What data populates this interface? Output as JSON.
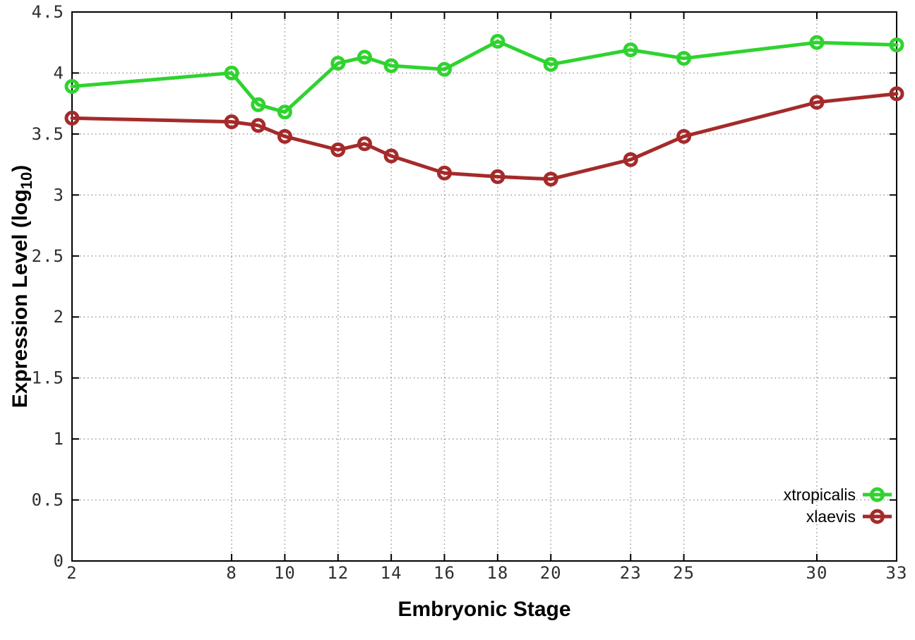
{
  "figure": {
    "background": "#ffffff",
    "border_color": "#000000",
    "grid_color": "#999999",
    "tick_label_color": "#2f2f2f"
  },
  "chart_data": {
    "type": "line",
    "title": "",
    "xlabel": "Embryonic Stage",
    "ylabel_prefix": "Expression Level (log",
    "ylabel_sub": "10",
    "ylabel_suffix": ")",
    "x": [
      2,
      8,
      9,
      10,
      12,
      13,
      14,
      16,
      18,
      20,
      23,
      25,
      30,
      33
    ],
    "series": [
      {
        "name": "xtropicalis",
        "color": "#2fd32f",
        "values": [
          3.89,
          4.0,
          3.74,
          3.68,
          4.08,
          4.13,
          4.06,
          4.03,
          4.26,
          4.07,
          4.19,
          4.12,
          4.25,
          4.23
        ]
      },
      {
        "name": "xlaevis",
        "color": "#a52a2a",
        "values": [
          3.63,
          3.6,
          3.57,
          3.48,
          3.37,
          3.42,
          3.32,
          3.18,
          3.15,
          3.13,
          3.29,
          3.48,
          3.76,
          3.83
        ]
      }
    ],
    "xlim": [
      2,
      33
    ],
    "ylim": [
      0,
      4.5
    ],
    "xticks": [
      2,
      8,
      10,
      12,
      14,
      16,
      18,
      20,
      23,
      25,
      30,
      33
    ],
    "xtick_labels": [
      "2",
      "8",
      "10",
      "12",
      "14",
      "16",
      "18",
      "20",
      "23",
      "25",
      "30",
      "33"
    ],
    "yticks": [
      0,
      0.5,
      1,
      1.5,
      2,
      2.5,
      3,
      3.5,
      4,
      4.5
    ],
    "ytick_labels": [
      "0",
      "0.5",
      "1",
      "1.5",
      "2",
      "2.5",
      "3",
      "3.5",
      "4",
      "4.5"
    ],
    "grid": true,
    "legend_position": "inside-right-bottom",
    "marker": "open-circle"
  }
}
